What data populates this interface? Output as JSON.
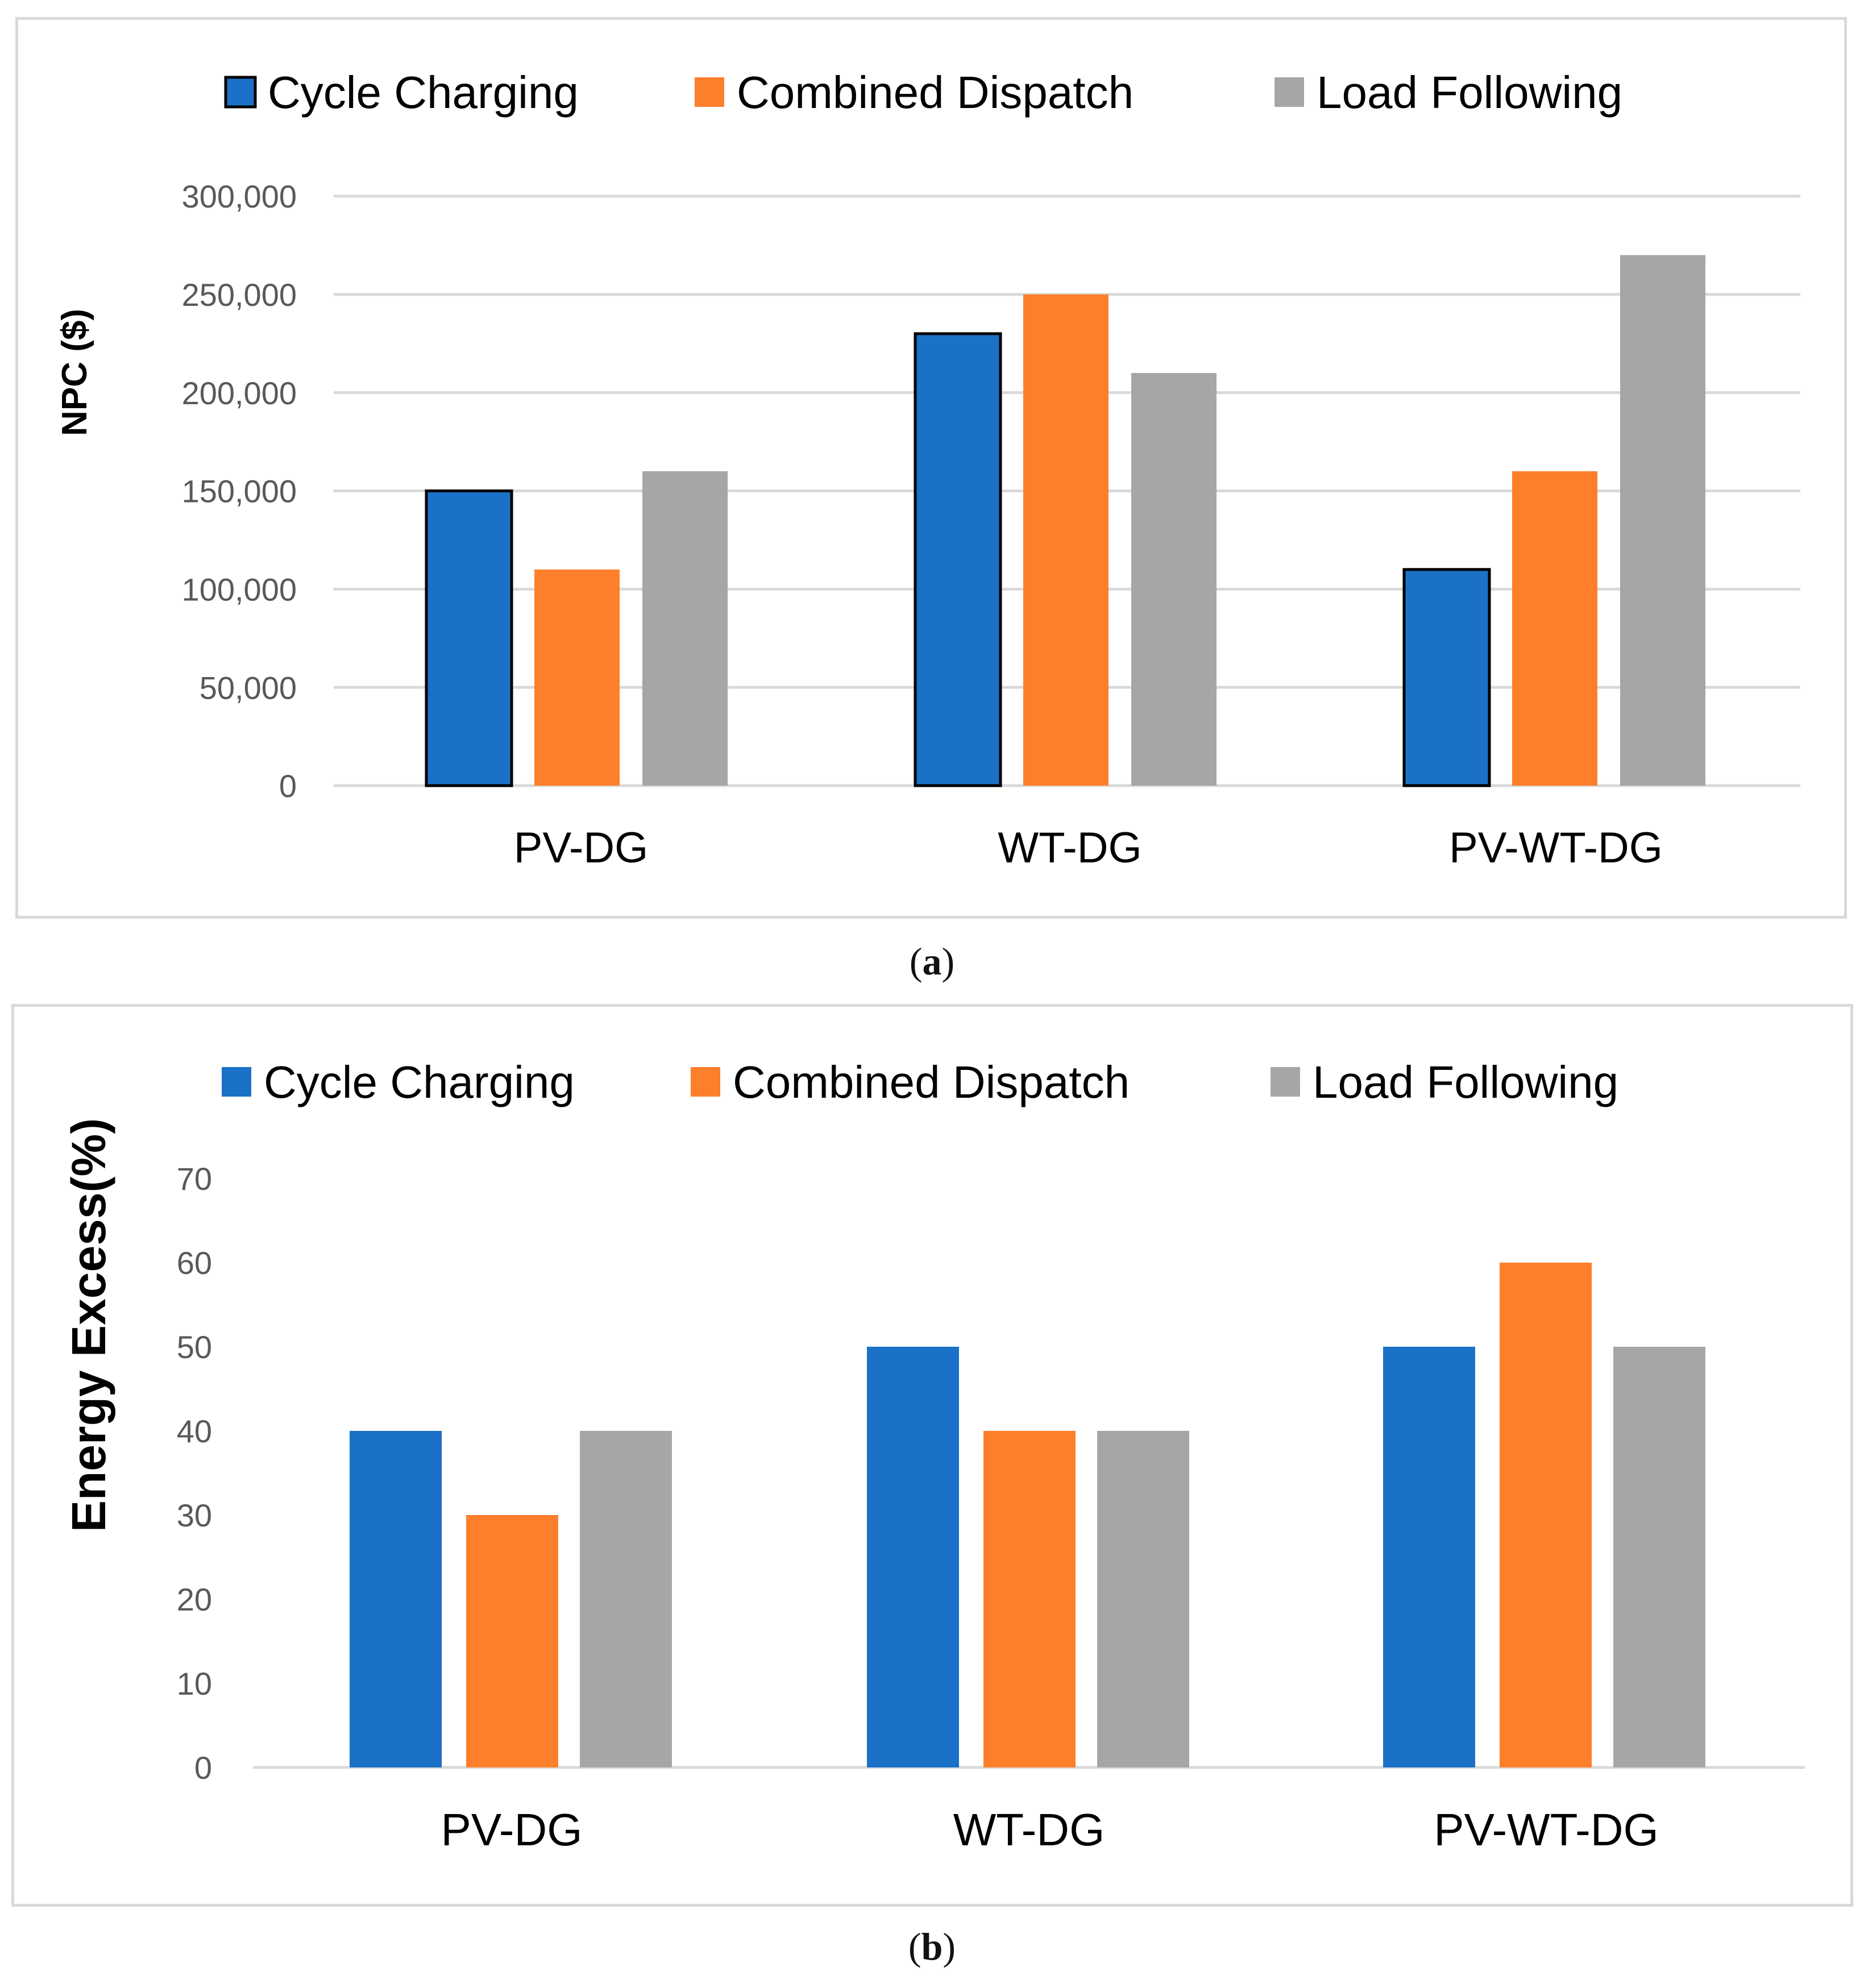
{
  "chart_data": [
    {
      "type": "bar",
      "panel_label": "a",
      "categories": [
        "PV-DG",
        "WT-DG",
        "PV-WT-DG"
      ],
      "series": [
        {
          "name": "Cycle Charging",
          "values": [
            150000,
            230000,
            110000
          ]
        },
        {
          "name": "Combined Dispatch",
          "values": [
            110000,
            250000,
            160000
          ]
        },
        {
          "name": "Load Following",
          "values": [
            160000,
            210000,
            270000
          ]
        }
      ],
      "series_colors": [
        "#1a71c7",
        "#fd7f2b",
        "#a6a6a6"
      ],
      "outlined_series": [
        0
      ],
      "title": "",
      "xlabel": "",
      "ylabel": "NPC ($)",
      "ylim": [
        0,
        300000
      ],
      "yticks": [
        0,
        50000,
        100000,
        150000,
        200000,
        250000,
        300000
      ],
      "ytick_labels": [
        "0",
        "50,000",
        "100,000",
        "150,000",
        "200,000",
        "250,000",
        "300,000"
      ],
      "grid": true,
      "legend_position": "top-center"
    },
    {
      "type": "bar",
      "panel_label": "b",
      "categories": [
        "PV-DG",
        "WT-DG",
        "PV-WT-DG"
      ],
      "series": [
        {
          "name": "Cycle Charging",
          "values": [
            40,
            50,
            50
          ]
        },
        {
          "name": "Combined Dispatch",
          "values": [
            30,
            40,
            60
          ]
        },
        {
          "name": "Load Following",
          "values": [
            40,
            40,
            50
          ]
        }
      ],
      "series_colors": [
        "#1a71c7",
        "#fd7f2b",
        "#a6a6a6"
      ],
      "outlined_series": [],
      "title": "",
      "xlabel": "",
      "ylabel": "Energy Excess(%)",
      "ylim": [
        0,
        70
      ],
      "yticks": [
        0,
        10,
        20,
        30,
        40,
        50,
        60,
        70
      ],
      "ytick_labels": [
        "0",
        "10",
        "20",
        "30",
        "40",
        "50",
        "60",
        "70"
      ],
      "grid": false,
      "legend_position": "top-center"
    }
  ]
}
